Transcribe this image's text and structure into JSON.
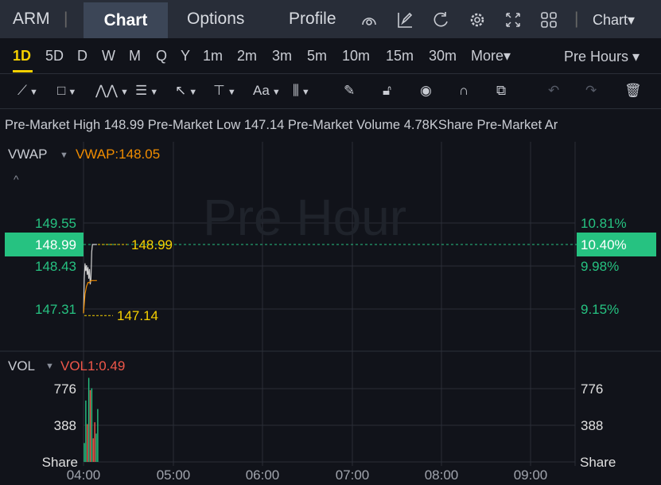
{
  "header": {
    "symbol": "ARM",
    "tabs": [
      "Chart",
      "Options",
      "Profile"
    ],
    "active_tab": "Chart",
    "chart_type": "Chart",
    "icons": [
      "speedometer-icon",
      "edit-icon",
      "refresh-icon",
      "gear-icon",
      "fullscreen-icon",
      "grid-layout-icon"
    ]
  },
  "periods": {
    "items": [
      "1D",
      "5D",
      "D",
      "W",
      "M",
      "Q",
      "Y",
      "1m",
      "2m",
      "3m",
      "5m",
      "10m",
      "15m",
      "30m"
    ],
    "active": "1D",
    "more": "More",
    "session": "Pre Hours"
  },
  "tools": [
    "line-tool-icon",
    "rectangle-tool-icon",
    "pattern-tool-icon",
    "fibonacci-tool-icon",
    "arrow-tool-icon",
    "measure-tool-icon",
    "text-tool-icon",
    "candles-tool-icon",
    "pen-icon",
    "unlock-icon",
    "eye-icon",
    "magnet-icon",
    "copy-icon",
    "undo-icon",
    "redo-icon",
    "trash-icon"
  ],
  "info": {
    "high_label": "Pre-Market High",
    "high": "148.99",
    "low_label": "Pre-Market Low",
    "low": "147.14",
    "vol_label": "Pre-Market Volume",
    "vol": "4.78KShare",
    "extra": "Pre-Market Ar"
  },
  "main": {
    "indicator": "VWAP",
    "vwap_label": "VWAP:148.05",
    "watermark": "Pre Hour",
    "price_ticks": [
      "149.55",
      "148.99",
      "148.43",
      "147.31"
    ],
    "pct_ticks": [
      "10.81%",
      "10.40%",
      "9.98%",
      "9.15%"
    ],
    "current_price": "148.99",
    "current_pct": "10.40%",
    "high_marker": "148.99",
    "low_marker": "147.14"
  },
  "volume": {
    "indicator": "VOL",
    "vol_label": "VOL1:0.49",
    "ticks": [
      "776",
      "388"
    ],
    "unit": "Share"
  },
  "x_ticks": [
    "04:00",
    "05:00",
    "06:00",
    "07:00",
    "08:00",
    "09:00"
  ],
  "colors": {
    "up": "#26c281",
    "down": "#f0574a",
    "vwap": "#f08c00",
    "marker": "#f5d000",
    "accent": "#f5d000"
  },
  "chart_data": {
    "type": "line",
    "x_range": [
      "04:00",
      "09:30"
    ],
    "ylim": [
      147.0,
      149.8
    ],
    "price": {
      "minutes": [
        0,
        0.5,
        1,
        1.5,
        2,
        2.5,
        3,
        3.5,
        4,
        4.5,
        5,
        5.5,
        6,
        7,
        9
      ],
      "values": [
        147.2,
        148.1,
        148.5,
        148.3,
        148.45,
        148.2,
        148.4,
        148.1,
        148.35,
        147.95,
        148.1,
        148.8,
        148.99,
        148.99,
        148.99
      ]
    },
    "vwap": {
      "minutes": [
        0,
        1,
        2,
        3,
        4,
        5,
        6,
        7,
        9
      ],
      "values": [
        147.2,
        147.7,
        147.9,
        148.0,
        148.0,
        148.05,
        148.05,
        148.05,
        148.05
      ]
    },
    "volume": {
      "minutes": [
        0,
        1,
        2,
        3,
        4,
        5,
        6,
        7,
        8,
        9
      ],
      "values": [
        200,
        650,
        400,
        890,
        760,
        780,
        250,
        420,
        300,
        560
      ],
      "up": [
        true,
        true,
        false,
        true,
        false,
        true,
        false,
        false,
        true,
        true
      ]
    }
  }
}
